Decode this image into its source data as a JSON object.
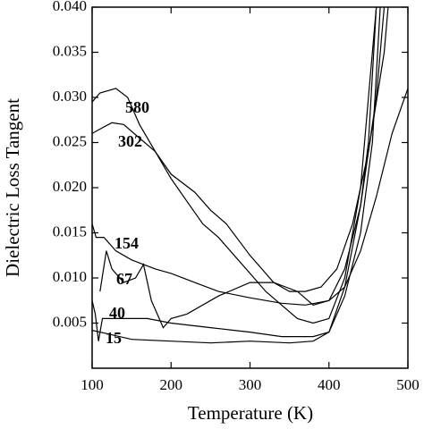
{
  "chart_data": {
    "type": "line",
    "x_label": "Temperature (K)",
    "y_label": "Dielectric Loss Tangent",
    "xlim": [
      100,
      500
    ],
    "xticks": [
      100,
      200,
      300,
      400,
      500
    ],
    "ylim": [
      0,
      0.04
    ],
    "yticks": [
      0.005,
      {
        "value": 0.01,
        "label": "0.010"
      },
      0.015,
      {
        "value": 0.02,
        "label": "0.020"
      },
      0.025,
      {
        "value": 0.03,
        "label": "0.030"
      },
      0.035,
      {
        "value": 0.04,
        "label": "0.040"
      }
    ],
    "series": [
      {
        "name": "580",
        "color": "#000000",
        "x": [
          100,
          110,
          130,
          145,
          160,
          180,
          200,
          220,
          240,
          260,
          280,
          300,
          320,
          340,
          360,
          380,
          400,
          420,
          440,
          450,
          460
        ],
        "values": [
          0.0295,
          0.0305,
          0.031,
          0.03,
          0.027,
          0.024,
          0.021,
          0.0185,
          0.016,
          0.0145,
          0.0125,
          0.0105,
          0.0085,
          0.007,
          0.0055,
          0.005,
          0.0055,
          0.01,
          0.02,
          0.03,
          0.04
        ]
      },
      {
        "name": "302",
        "color": "#000000",
        "x": [
          100,
          110,
          125,
          140,
          160,
          180,
          200,
          230,
          250,
          270,
          300,
          330,
          350,
          370,
          390,
          410,
          430,
          450,
          470,
          475
        ],
        "values": [
          0.026,
          0.0265,
          0.0272,
          0.027,
          0.0255,
          0.024,
          0.0215,
          0.0195,
          0.0175,
          0.016,
          0.0125,
          0.0095,
          0.0085,
          0.0085,
          0.009,
          0.011,
          0.016,
          0.024,
          0.035,
          0.04
        ]
      },
      {
        "name": "154",
        "color": "#000000",
        "x": [
          100,
          105,
          115,
          130,
          150,
          180,
          200,
          230,
          260,
          300,
          340,
          370,
          400,
          420,
          440,
          460,
          480,
          500
        ],
        "values": [
          0.016,
          0.0145,
          0.0145,
          0.013,
          0.012,
          0.011,
          0.0105,
          0.0095,
          0.0085,
          0.0078,
          0.0072,
          0.007,
          0.0075,
          0.009,
          0.013,
          0.019,
          0.026,
          0.031
        ]
      },
      {
        "name": "67",
        "color": "#000000",
        "x": [
          110,
          118,
          125,
          140,
          155,
          165,
          175,
          185,
          190,
          200,
          220,
          260,
          300,
          330,
          360,
          380,
          400,
          420,
          440,
          460,
          470
        ],
        "values": [
          0.0085,
          0.013,
          0.011,
          0.0095,
          0.01,
          0.0115,
          0.0075,
          0.0055,
          0.0045,
          0.0055,
          0.006,
          0.008,
          0.0095,
          0.0095,
          0.0085,
          0.007,
          0.0075,
          0.011,
          0.018,
          0.03,
          0.04
        ]
      },
      {
        "name": "40",
        "color": "#000000",
        "x": [
          100,
          104,
          108,
          113,
          130,
          170,
          200,
          250,
          300,
          340,
          380,
          400,
          420,
          440,
          455,
          465
        ],
        "values": [
          0.0075,
          0.006,
          0.003,
          0.0055,
          0.0055,
          0.0055,
          0.005,
          0.0045,
          0.004,
          0.0035,
          0.0035,
          0.004,
          0.008,
          0.015,
          0.025,
          0.04
        ]
      },
      {
        "name": "15",
        "color": "#000000",
        "x": [
          100,
          120,
          150,
          200,
          250,
          300,
          350,
          380,
          400,
          420,
          440,
          450,
          460
        ],
        "values": [
          0.0042,
          0.0038,
          0.0032,
          0.003,
          0.0028,
          0.003,
          0.0028,
          0.003,
          0.004,
          0.009,
          0.018,
          0.025,
          0.04
        ]
      }
    ]
  }
}
